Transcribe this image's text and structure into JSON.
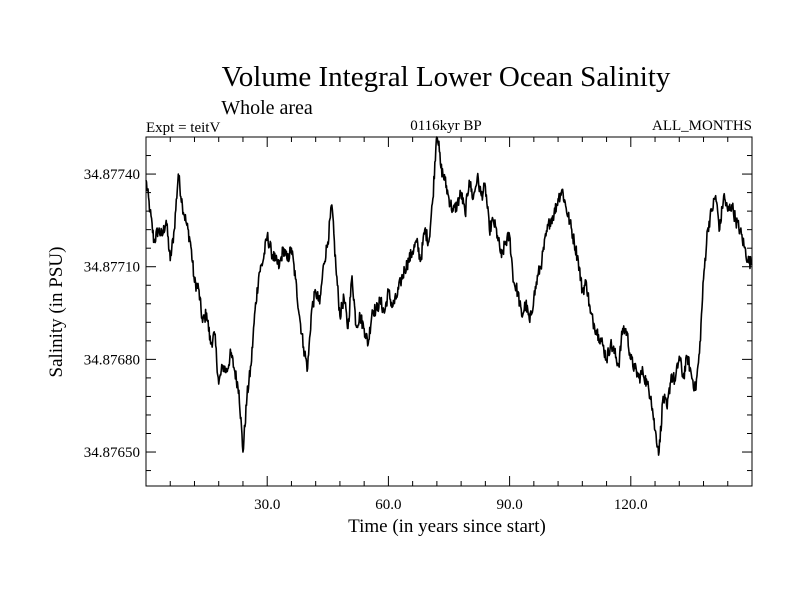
{
  "chart_data": {
    "type": "line",
    "title": "Volume Integral Lower Ocean Salinity",
    "subtitle": "Whole area",
    "left_label": "Expt = teitV",
    "center_label": "0116kyr BP",
    "right_label": "ALL_MONTHS",
    "xlabel": "Time (in years since start)",
    "ylabel": "Salinity (in PSU)",
    "xlim": [
      0,
      150
    ],
    "ylim": [
      34.87639,
      34.87752
    ],
    "xticks": [
      30,
      60,
      90,
      120
    ],
    "xtick_labels": [
      "30.0",
      "60.0",
      "90.0",
      "120.0"
    ],
    "yticks": [
      34.8765,
      34.8768,
      34.8771,
      34.8774
    ],
    "ytick_labels": [
      "34.87650",
      "34.87680",
      "34.87710",
      "34.87740"
    ],
    "grid": false,
    "series": [
      {
        "name": "salinity",
        "x": [
          0,
          1,
          2,
          3,
          4,
          5,
          6,
          7,
          8,
          9,
          10,
          11,
          12,
          13,
          14,
          15,
          16,
          17,
          18,
          19,
          20,
          21,
          22,
          23,
          24,
          25,
          26,
          27,
          28,
          29,
          30,
          31,
          32,
          33,
          34,
          35,
          36,
          37,
          38,
          39,
          40,
          41,
          42,
          43,
          44,
          45,
          46,
          47,
          48,
          49,
          50,
          51,
          52,
          53,
          54,
          55,
          56,
          57,
          58,
          59,
          60,
          61,
          62,
          63,
          64,
          65,
          66,
          67,
          68,
          69,
          70,
          71,
          72,
          73,
          74,
          75,
          76,
          77,
          78,
          79,
          80,
          81,
          82,
          83,
          84,
          85,
          86,
          87,
          88,
          89,
          90,
          91,
          92,
          93,
          94,
          95,
          96,
          97,
          98,
          99,
          100,
          101,
          102,
          103,
          104,
          105,
          106,
          107,
          108,
          109,
          110,
          111,
          112,
          113,
          114,
          115,
          116,
          117,
          118,
          119,
          120,
          121,
          122,
          123,
          124,
          125,
          126,
          127,
          128,
          129,
          130,
          131,
          132,
          133,
          134,
          135,
          136,
          137,
          138,
          139,
          140,
          141,
          142,
          143,
          144,
          145,
          146,
          147,
          148,
          149,
          150
        ],
        "values": [
          34.87738,
          34.87728,
          34.87718,
          34.87722,
          34.8772,
          34.87725,
          34.87712,
          34.87722,
          34.8774,
          34.8773,
          34.87724,
          34.87718,
          34.87705,
          34.87703,
          34.87692,
          34.87695,
          34.87685,
          34.87688,
          34.87672,
          34.87678,
          34.87676,
          34.87682,
          34.87676,
          34.8767,
          34.8765,
          34.87668,
          34.87678,
          34.87696,
          34.87708,
          34.87712,
          34.8772,
          34.87715,
          34.87712,
          34.8771,
          34.87716,
          34.87712,
          34.87716,
          34.87706,
          34.87694,
          34.87684,
          34.87677,
          34.87696,
          34.87702,
          34.87698,
          34.87711,
          34.87718,
          34.8773,
          34.8771,
          34.87694,
          34.877,
          34.8769,
          34.87707,
          34.87691,
          34.87694,
          34.8769,
          34.87685,
          34.87696,
          34.87696,
          34.87699,
          34.87695,
          34.87702,
          34.87697,
          34.877,
          34.87705,
          34.87709,
          34.87712,
          34.87715,
          34.87718,
          34.87712,
          34.87722,
          34.87718,
          34.87732,
          34.87755,
          34.87742,
          34.87738,
          34.87732,
          34.87728,
          34.8773,
          34.87734,
          34.87727,
          34.87738,
          34.87732,
          34.87739,
          34.87733,
          34.87736,
          34.87722,
          34.87725,
          34.8772,
          34.87713,
          34.87718,
          34.8772,
          34.87705,
          34.87702,
          34.87694,
          34.87698,
          34.87692,
          34.877,
          34.87707,
          34.87712,
          34.8772,
          34.87725,
          34.87727,
          34.87732,
          34.87735,
          34.87729,
          34.87724,
          34.87718,
          34.87712,
          34.87702,
          34.87705,
          34.87695,
          34.87691,
          34.87688,
          34.87685,
          34.8768,
          34.87685,
          34.87682,
          34.87678,
          34.8769,
          34.87689,
          34.8768,
          34.87677,
          34.87674,
          34.87676,
          34.87672,
          34.87668,
          34.87657,
          34.8765,
          34.87668,
          34.87664,
          34.87675,
          34.87673,
          34.87681,
          34.87674,
          34.87681,
          34.87675,
          34.8767,
          34.87682,
          34.87706,
          34.87722,
          34.87728,
          34.87733,
          34.87722,
          34.87733,
          34.87728,
          34.8773,
          34.87725,
          34.87722,
          34.87717,
          34.87712,
          34.87711
        ]
      }
    ]
  }
}
